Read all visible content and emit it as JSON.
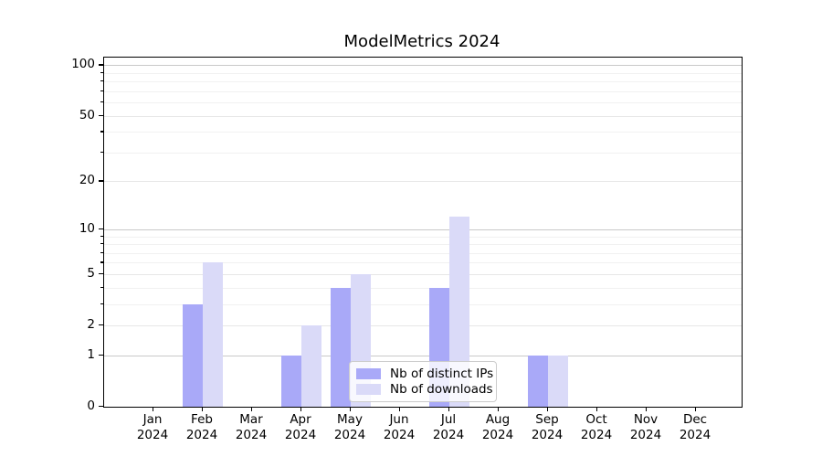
{
  "chart_data": {
    "type": "bar",
    "title": "ModelMetrics 2024",
    "categories": [
      "Jan",
      "Feb",
      "Mar",
      "Apr",
      "May",
      "Jun",
      "Jul",
      "Aug",
      "Sep",
      "Oct",
      "Nov",
      "Dec"
    ],
    "category_year": "2024",
    "series": [
      {
        "name": "Nb of distinct IPs",
        "color": "#a9a9f8",
        "values": [
          0,
          3,
          0,
          1,
          4,
          0,
          4,
          0,
          1,
          0,
          0,
          0
        ]
      },
      {
        "name": "Nb of downloads",
        "color": "#dadaf8",
        "values": [
          0,
          6,
          0,
          2,
          5,
          0,
          12,
          0,
          1,
          0,
          0,
          0
        ]
      }
    ],
    "y_axis": {
      "scale": "log1p",
      "tick_values": [
        0,
        1,
        2,
        5,
        10,
        20,
        50,
        100
      ],
      "major_gridlines": [
        1,
        10,
        100
      ],
      "labeled_minor_gridlines": [
        2,
        5,
        20,
        50
      ],
      "minor_gridlines": [
        3,
        4,
        6,
        7,
        8,
        9,
        30,
        40,
        60,
        70,
        80,
        90
      ],
      "ylim": [
        0,
        112
      ]
    },
    "legend": {
      "position": "lower center"
    },
    "colors": {
      "grid_major": "#c9c9c9",
      "grid_mid": "#e7e7e7",
      "grid_minor": "#f1f1f1",
      "spine": "#000000",
      "text": "#000000"
    }
  }
}
